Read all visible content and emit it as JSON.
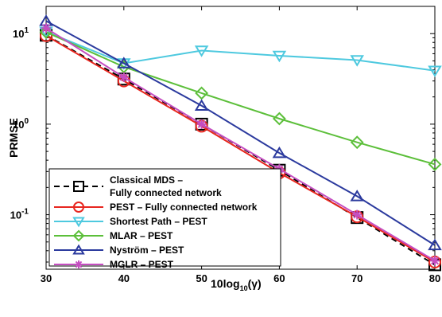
{
  "chart_data": {
    "type": "line",
    "title": "",
    "xlabel": "10log",
    "xlabel_sub": "10",
    "xlabel_tail": "(γ)",
    "ylabel": "PRMSE",
    "xlim": [
      30,
      80
    ],
    "ylim": [
      0.025,
      20
    ],
    "yscale": "log",
    "x_ticks": [
      30,
      40,
      50,
      60,
      70,
      80
    ],
    "x_tick_labels": [
      "30",
      "40",
      "50",
      "60",
      "70",
      "80"
    ],
    "y_ticks": [
      {
        "value": 10,
        "base": "10",
        "exp": "1"
      },
      {
        "value": 1,
        "base": "10",
        "exp": "0"
      },
      {
        "value": 0.1,
        "base": "10",
        "exp": "-1"
      }
    ],
    "grid": false,
    "legend_position": "bottom-left",
    "x": [
      30,
      40,
      50,
      60,
      70,
      80
    ],
    "series": [
      {
        "name": "Classical MDS –",
        "name_line2": "Fully connected network",
        "color": "#000000",
        "marker": "square",
        "dash": "7,5",
        "values": [
          9.6,
          3.15,
          1.0,
          0.31,
          0.093,
          0.028
        ]
      },
      {
        "name": "PEST – Fully connected network",
        "color": "#e8261f",
        "marker": "circle",
        "dash": "",
        "values": [
          9.5,
          3.0,
          0.95,
          0.29,
          0.095,
          0.03
        ]
      },
      {
        "name": "Shortest Path – PEST",
        "color": "#4ec9df",
        "marker": "triangle-down",
        "dash": "",
        "values": [
          10.5,
          4.7,
          6.5,
          5.7,
          5.1,
          3.9
        ]
      },
      {
        "name": "MLAR – PEST",
        "color": "#5cbf3a",
        "marker": "diamond",
        "dash": "",
        "values": [
          10.4,
          4.3,
          2.2,
          1.15,
          0.63,
          0.36
        ]
      },
      {
        "name": "Nyström – PEST",
        "color": "#2b3a9e",
        "marker": "triangle-up",
        "dash": "",
        "values": [
          13.8,
          4.7,
          1.6,
          0.48,
          0.16,
          0.046
        ]
      },
      {
        "name": "MGLR – PEST",
        "color": "#c54ec1",
        "marker": "asterisk",
        "dash": "",
        "values": [
          11.5,
          3.3,
          1.0,
          0.32,
          0.1,
          0.031
        ]
      }
    ]
  }
}
